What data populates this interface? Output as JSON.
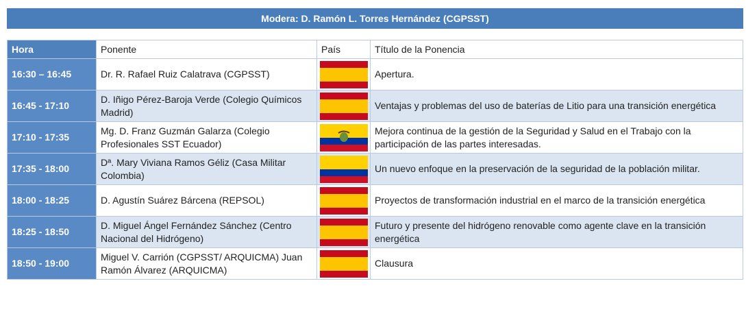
{
  "title": "Modera:  D. Ramón L. Torres Hernández (CGPSST)",
  "table": {
    "headers": [
      "Hora",
      "Ponente",
      "País",
      "Título de la Ponencia"
    ],
    "rows": [
      {
        "hora": "16:30 – 16:45",
        "ponente": "Dr. R. Rafael Ruiz Calatrava (CGPSST)",
        "titulo": "Apertura."
      },
      {
        "hora": "16:45 - 17:10",
        "ponente": "D. Iñigo Pérez-Baroja Verde (Colegio Químicos Madrid)",
        "titulo": "Ventajas y problemas del uso de baterías de Litio para una transición energética"
      },
      {
        "hora": "17:10 - 17:35",
        "ponente": "Mg. D. Franz Guzmán Galarza (Colegio Profesionales SST Ecuador)",
        "titulo": "Mejora continua de la gestión de la Seguridad y Salud en el Trabajo con la participación de las partes interesadas."
      },
      {
        "hora": "17:35 - 18:00",
        "ponente": "Dª. Mary Viviana Ramos Géliz (Casa Militar Colombia)",
        "titulo": "Un nuevo enfoque en la preservación de la seguridad de la población militar."
      },
      {
        "hora": "18:00 - 18:25",
        "ponente": "D. Agustín Suárez Bárcena (REPSOL)",
        "titulo": "Proyectos de transformación industrial en el marco de la transición energética"
      },
      {
        "hora": "18:25 - 18:50",
        "ponente": "D. Miguel Ángel Fernández Sánchez (Centro Nacional del Hidrógeno)",
        "titulo": "Futuro y presente del hidrógeno renovable como agente clave en la transición energética"
      },
      {
        "hora": "18:50 - 19:00",
        "ponente": "Miguel V. Carrión (CGPSST/ ARQUICMA) Juan Ramón Álvarez (ARQUICMA)",
        "titulo": "Clausura"
      }
    ]
  }
}
